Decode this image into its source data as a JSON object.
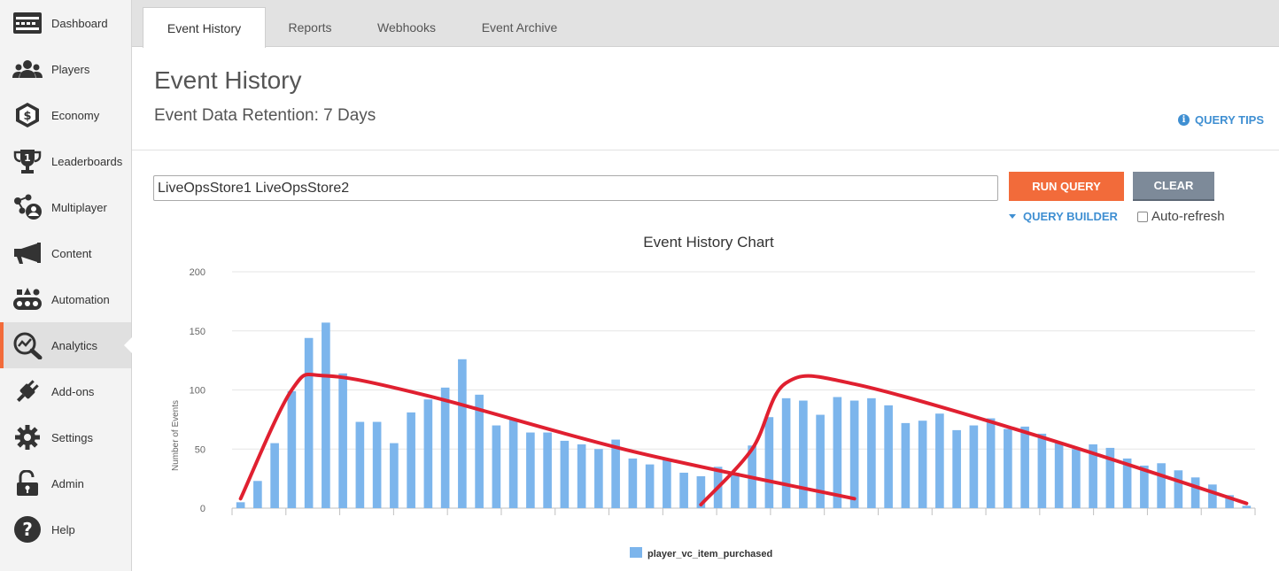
{
  "sidebar": {
    "items": [
      {
        "label": "Dashboard",
        "icon": "dashboard-icon"
      },
      {
        "label": "Players",
        "icon": "players-icon"
      },
      {
        "label": "Economy",
        "icon": "economy-icon"
      },
      {
        "label": "Leaderboards",
        "icon": "trophy-icon"
      },
      {
        "label": "Multiplayer",
        "icon": "multiplayer-icon"
      },
      {
        "label": "Content",
        "icon": "megaphone-icon"
      },
      {
        "label": "Automation",
        "icon": "automation-icon"
      },
      {
        "label": "Analytics",
        "icon": "analytics-icon",
        "active": true
      },
      {
        "label": "Add-ons",
        "icon": "plug-icon"
      },
      {
        "label": "Settings",
        "icon": "gear-icon"
      },
      {
        "label": "Admin",
        "icon": "lock-icon"
      },
      {
        "label": "Help",
        "icon": "help-icon"
      }
    ]
  },
  "tabs": [
    {
      "label": "Event History",
      "active": true
    },
    {
      "label": "Reports"
    },
    {
      "label": "Webhooks"
    },
    {
      "label": "Event Archive"
    }
  ],
  "page": {
    "title": "Event History",
    "subtitle": "Event Data Retention: 7 Days",
    "query_tips": "QUERY TIPS"
  },
  "query": {
    "value": "LiveOpsStore1 LiveOpsStore2",
    "run_label": "RUN QUERY",
    "clear_label": "CLEAR",
    "builder_label": "QUERY BUILDER",
    "autorefresh_label": "Auto-refresh",
    "autorefresh_checked": false
  },
  "colors": {
    "accent": "#f26b3a",
    "link": "#3f8fd2",
    "bar": "#7cb5ec",
    "trend": "#e02030",
    "clear_button": "#7d8a99"
  },
  "chart_data": {
    "type": "bar",
    "title": "Event History Chart",
    "ylabel": "Number of Events",
    "xlabel": "",
    "ylim": [
      0,
      200
    ],
    "yticks": [
      0,
      50,
      100,
      150,
      200
    ],
    "grid": true,
    "legend_position": "bottom",
    "series": [
      {
        "name": "player_vc_item_purchased",
        "values": [
          5,
          23,
          55,
          99,
          144,
          157,
          114,
          73,
          73,
          55,
          81,
          92,
          102,
          126,
          96,
          70,
          75,
          64,
          64,
          57,
          54,
          50,
          58,
          42,
          37,
          41,
          30,
          27,
          35,
          30,
          53,
          77,
          93,
          91,
          79,
          94,
          91,
          93,
          87,
          72,
          74,
          80,
          66,
          70,
          76,
          67,
          69,
          63,
          55,
          50,
          54,
          51,
          42,
          36,
          38,
          32,
          26,
          20,
          11,
          2
        ]
      }
    ],
    "annotations": [
      {
        "type": "trend-curve",
        "points": [
          [
            1,
            8
          ],
          [
            4,
            100
          ],
          [
            6,
            112
          ],
          [
            12,
            95
          ],
          [
            24,
            48
          ],
          [
            37,
            8
          ]
        ]
      },
      {
        "type": "trend-curve",
        "points": [
          [
            28,
            3
          ],
          [
            31,
            50
          ],
          [
            33,
            106
          ],
          [
            37,
            105
          ],
          [
            48,
            60
          ],
          [
            60,
            4
          ]
        ]
      }
    ]
  }
}
